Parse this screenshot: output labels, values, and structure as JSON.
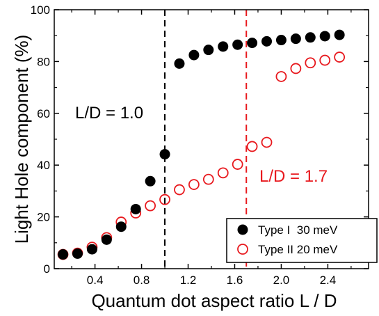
{
  "chart_data": {
    "type": "scatter",
    "xlabel": "Quantum dot aspect ratio L / D",
    "ylabel": "Light Hole component (%)",
    "xlim": [
      0.05,
      2.75
    ],
    "ylim": [
      0,
      100
    ],
    "x_ticks": [
      0.4,
      0.8,
      1.2,
      1.6,
      2.0,
      2.4
    ],
    "x_tick_labels": [
      "0.4",
      "0.8",
      "1.2",
      "1.6",
      "2.0",
      "2.4"
    ],
    "x_minor_ticks": [
      0.2,
      0.6,
      1.0,
      1.4,
      1.8,
      2.2,
      2.6
    ],
    "y_ticks": [
      0,
      20,
      40,
      60,
      80,
      100
    ],
    "y_tick_labels": [
      "0",
      "20",
      "40",
      "60",
      "80",
      "100"
    ],
    "y_minor_ticks": [
      10,
      30,
      50,
      70,
      90
    ],
    "grid": false,
    "legend_position": "bottom-right",
    "series": [
      {
        "name": "Type I  30 meV",
        "marker": "filled-circle",
        "color": "#000000",
        "x": [
          0.125,
          0.25,
          0.375,
          0.5,
          0.625,
          0.75,
          0.875,
          1.0,
          1.125,
          1.25,
          1.375,
          1.5,
          1.625,
          1.75,
          1.875,
          2.0,
          2.125,
          2.25,
          2.375,
          2.5
        ],
        "y": [
          5.5,
          5.8,
          7.5,
          11.2,
          16.2,
          23.0,
          33.8,
          44.2,
          79.2,
          82.5,
          84.5,
          85.8,
          86.5,
          87.2,
          87.8,
          88.3,
          88.8,
          89.3,
          89.8,
          90.3
        ]
      },
      {
        "name": "Type II 20 meV",
        "marker": "open-circle",
        "color": "#e8191e",
        "x": [
          0.125,
          0.25,
          0.375,
          0.5,
          0.625,
          0.75,
          0.875,
          1.0,
          1.125,
          1.25,
          1.375,
          1.5,
          1.625,
          1.75,
          1.875,
          2.0,
          2.125,
          2.25,
          2.375,
          2.5
        ],
        "y": [
          5.5,
          6.0,
          8.3,
          12.0,
          18.0,
          21.5,
          24.3,
          26.7,
          30.5,
          32.5,
          34.5,
          37.0,
          40.3,
          47.2,
          48.8,
          74.2,
          77.3,
          79.5,
          80.5,
          81.7
        ]
      }
    ],
    "reference_lines": [
      {
        "x": 1.0,
        "color": "#000000",
        "style": "dashed"
      },
      {
        "x": 1.7,
        "color": "#e8191e",
        "style": "dashed"
      }
    ],
    "annotations": [
      {
        "text": "L/D = 1.0",
        "color": "#000000"
      },
      {
        "text": "L/D = 1.7",
        "color": "#e8191e"
      }
    ]
  }
}
